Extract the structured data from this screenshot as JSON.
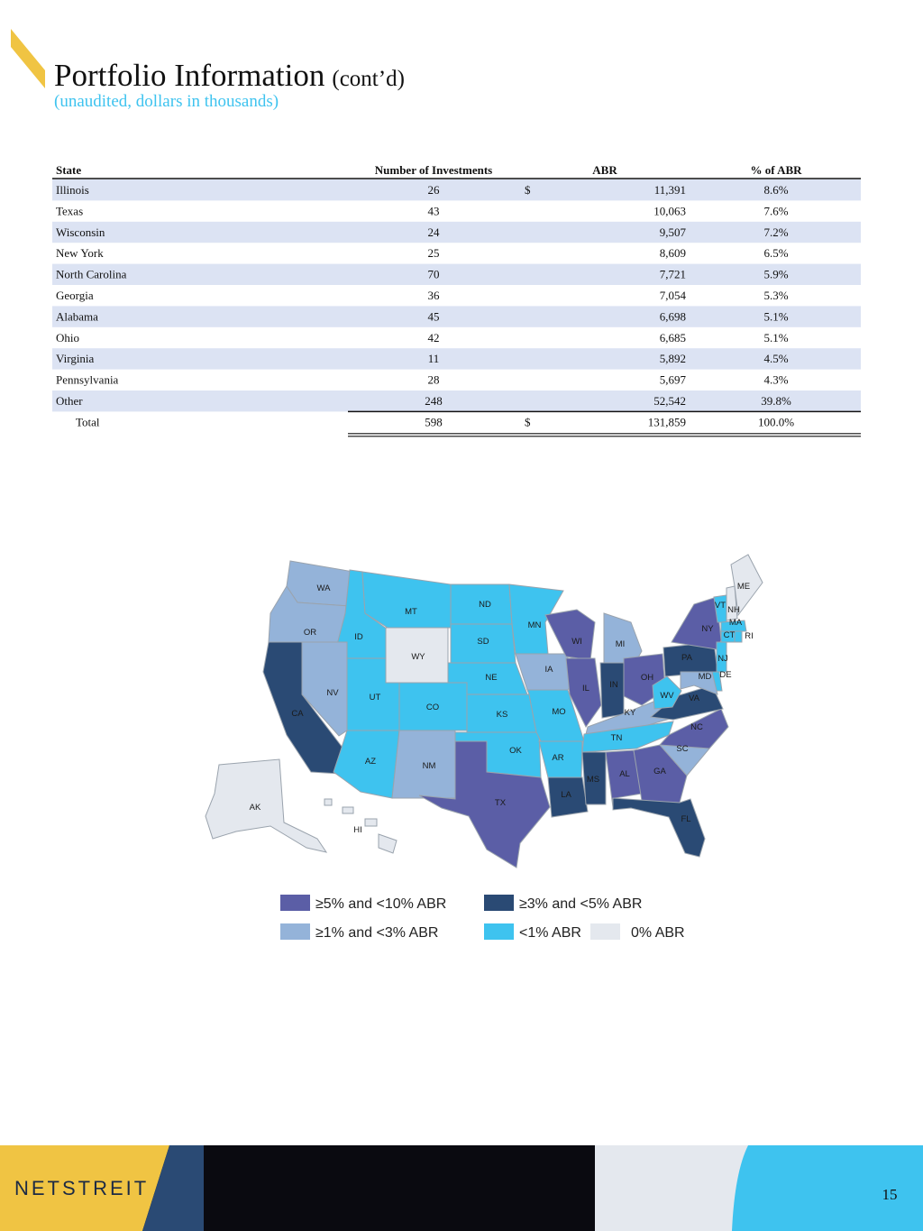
{
  "header": {
    "title": "Portfolio Information",
    "title_suffix": "(cont’d)",
    "subtitle": "(unaudited, dollars in thousands)"
  },
  "table": {
    "columns": [
      "State",
      "Number of Investments",
      "ABR",
      "% of ABR"
    ],
    "rows": [
      {
        "state": "Illinois",
        "investments": "26",
        "currency": "$",
        "abr": "11,391",
        "pct": "8.6%"
      },
      {
        "state": "Texas",
        "investments": "43",
        "abr": "10,063",
        "pct": "7.6%"
      },
      {
        "state": "Wisconsin",
        "investments": "24",
        "abr": "9,507",
        "pct": "7.2%"
      },
      {
        "state": "New York",
        "investments": "25",
        "abr": "8,609",
        "pct": "6.5%"
      },
      {
        "state": "North Carolina",
        "investments": "70",
        "abr": "7,721",
        "pct": "5.9%"
      },
      {
        "state": "Georgia",
        "investments": "36",
        "abr": "7,054",
        "pct": "5.3%"
      },
      {
        "state": "Alabama",
        "investments": "45",
        "abr": "6,698",
        "pct": "5.1%"
      },
      {
        "state": "Ohio",
        "investments": "42",
        "abr": "6,685",
        "pct": "5.1%"
      },
      {
        "state": "Virginia",
        "investments": "11",
        "abr": "5,892",
        "pct": "4.5%"
      },
      {
        "state": "Pennsylvania",
        "investments": "28",
        "abr": "5,697",
        "pct": "4.3%"
      },
      {
        "state": "Other",
        "investments": "248",
        "abr": "52,542",
        "pct": "39.8%"
      }
    ],
    "total": {
      "state": "Total",
      "investments": "598",
      "currency": "$",
      "abr": "131,859",
      "pct": "100.0%"
    }
  },
  "map": {
    "states": [
      {
        "label": "WA",
        "color": "#94b3d9"
      },
      {
        "label": "OR",
        "color": "#94b3d9"
      },
      {
        "label": "CA",
        "color": "#2a4a74"
      },
      {
        "label": "ID",
        "color": "#3ec3ef"
      },
      {
        "label": "NV",
        "color": "#94b3d9"
      },
      {
        "label": "MT",
        "color": "#3ec3ef"
      },
      {
        "label": "WY",
        "color": "#e4e8ee"
      },
      {
        "label": "UT",
        "color": "#3ec3ef"
      },
      {
        "label": "AZ",
        "color": "#3ec3ef"
      },
      {
        "label": "CO",
        "color": "#3ec3ef"
      },
      {
        "label": "NM",
        "color": "#94b3d9"
      },
      {
        "label": "ND",
        "color": "#3ec3ef"
      },
      {
        "label": "SD",
        "color": "#3ec3ef"
      },
      {
        "label": "NE",
        "color": "#3ec3ef"
      },
      {
        "label": "KS",
        "color": "#3ec3ef"
      },
      {
        "label": "OK",
        "color": "#3ec3ef"
      },
      {
        "label": "TX",
        "color": "#5b5ea6"
      },
      {
        "label": "MN",
        "color": "#3ec3ef"
      },
      {
        "label": "IA",
        "color": "#94b3d9"
      },
      {
        "label": "MO",
        "color": "#3ec3ef"
      },
      {
        "label": "AR",
        "color": "#3ec3ef"
      },
      {
        "label": "LA",
        "color": "#2a4a74"
      },
      {
        "label": "WI",
        "color": "#5b5ea6"
      },
      {
        "label": "IL",
        "color": "#5b5ea6"
      },
      {
        "label": "MI",
        "color": "#94b3d9"
      },
      {
        "label": "IN",
        "color": "#2a4a74"
      },
      {
        "label": "OH",
        "color": "#5b5ea6"
      },
      {
        "label": "KY",
        "color": "#94b3d9"
      },
      {
        "label": "TN",
        "color": "#3ec3ef"
      },
      {
        "label": "MS",
        "color": "#2a4a74"
      },
      {
        "label": "AL",
        "color": "#5b5ea6"
      },
      {
        "label": "GA",
        "color": "#5b5ea6"
      },
      {
        "label": "FL",
        "color": "#2a4a74"
      },
      {
        "label": "SC",
        "color": "#94b3d9"
      },
      {
        "label": "NC",
        "color": "#5b5ea6"
      },
      {
        "label": "VA",
        "color": "#2a4a74"
      },
      {
        "label": "WV",
        "color": "#3ec3ef"
      },
      {
        "label": "PA",
        "color": "#2a4a74"
      },
      {
        "label": "NY",
        "color": "#5b5ea6"
      },
      {
        "label": "VT",
        "color": "#3ec3ef"
      },
      {
        "label": "NH",
        "color": "#e4e8ee"
      },
      {
        "label": "ME",
        "color": "#e4e8ee"
      },
      {
        "label": "MA",
        "color": "#3ec3ef"
      },
      {
        "label": "CT",
        "color": "#3ec3ef"
      },
      {
        "label": "RI",
        "color": "#3ec3ef"
      },
      {
        "label": "NJ",
        "color": "#3ec3ef"
      },
      {
        "label": "DE",
        "color": "#3ec3ef"
      },
      {
        "label": "MD",
        "color": "#94b3d9"
      },
      {
        "label": "AK",
        "color": "#e4e8ee"
      },
      {
        "label": "HI",
        "color": "#e4e8ee"
      }
    ],
    "legend": [
      {
        "label": "≥5% and <10% ABR",
        "color": "#5b5ea6"
      },
      {
        "label": "≥3% and <5% ABR",
        "color": "#2a4a74"
      },
      {
        "label": "≥1% and <3% ABR",
        "color": "#94b3d9"
      },
      {
        "label": "<1% ABR",
        "color": "#3ec3ef"
      },
      {
        "label": "0% ABR",
        "color": "#e4e8ee"
      }
    ]
  },
  "footer": {
    "brand": "NETSTREIT",
    "page": "15"
  }
}
